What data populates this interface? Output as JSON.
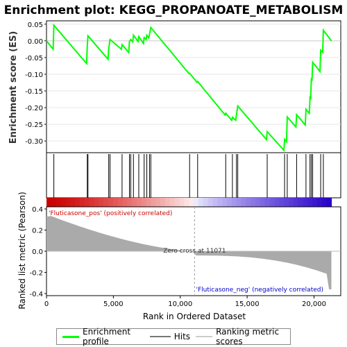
{
  "chart_data": {
    "type": "line",
    "title": "Enrichment plot: KEGG_PROPANOATE_METABOLISM",
    "es_ylabel": "Enrichment score (ES)",
    "metric_ylabel": "Ranked list metric (Pearson)",
    "xlabel": "Rank in Ordered Dataset",
    "xlim": [
      0,
      22000
    ],
    "x_ticks": [
      "0",
      "5,000",
      "10,000",
      "15,000",
      "20,000"
    ],
    "x_tick_values": [
      0,
      5000,
      10000,
      15000,
      20000
    ],
    "es_ylim": [
      -0.335,
      0.06
    ],
    "es_ticks": [
      "0.05",
      "0.00",
      "-0.05",
      "-0.10",
      "-0.15",
      "-0.20",
      "-0.25",
      "-0.30"
    ],
    "es_tick_values": [
      0.05,
      0.0,
      -0.05,
      -0.1,
      -0.15,
      -0.2,
      -0.25,
      -0.3
    ],
    "metric_ylim": [
      -0.42,
      0.42
    ],
    "metric_ticks": [
      "0.4",
      "0.2",
      "0.0",
      "-0.2",
      "-0.4"
    ],
    "metric_tick_values": [
      0.4,
      0.2,
      0.0,
      -0.2,
      -0.4
    ],
    "n_genes": 21300,
    "zero_cross_label": "Zero cross at 11071",
    "zero_cross": 11071,
    "pos_label": "'Fluticasone_pos' (positively correlated)",
    "neg_label": "'Fluticasone_neg' (negatively correlated)",
    "hits": [
      550,
      3050,
      3100,
      4650,
      4750,
      5650,
      6200,
      6300,
      6500,
      6900,
      7300,
      7500,
      7700,
      7800,
      10700,
      11300,
      13400,
      13900,
      14200,
      14300,
      16500,
      17800,
      18000,
      18700,
      19400,
      19700,
      19800,
      19900,
      20500,
      20700
    ],
    "es_series": {
      "name": "Enrichment profile",
      "x": [
        0,
        500,
        550,
        3000,
        3050,
        3100,
        4600,
        4650,
        4750,
        5600,
        5650,
        6150,
        6200,
        6300,
        6450,
        6500,
        6850,
        6900,
        7250,
        7300,
        7450,
        7500,
        7650,
        7700,
        7800,
        10650,
        10700,
        11250,
        11300,
        13350,
        13400,
        13850,
        13900,
        14150,
        14200,
        14300,
        16450,
        16500,
        17750,
        17800,
        17950,
        18000,
        18650,
        18700,
        19350,
        19400,
        19650,
        19700,
        19750,
        19800,
        19850,
        19900,
        20450,
        20500,
        20650,
        20700,
        21300
      ],
      "y": [
        0.0,
        -0.025,
        0.047,
        -0.068,
        -0.015,
        0.015,
        -0.055,
        -0.025,
        0.004,
        -0.025,
        -0.011,
        -0.035,
        -0.002,
        0.004,
        -0.003,
        0.017,
        -0.002,
        0.013,
        -0.008,
        0.01,
        0.004,
        0.017,
        0.009,
        0.02,
        0.04,
        -0.098,
        -0.097,
        -0.124,
        -0.122,
        -0.222,
        -0.217,
        -0.238,
        -0.229,
        -0.238,
        -0.222,
        -0.195,
        -0.296,
        -0.272,
        -0.328,
        -0.295,
        -0.302,
        -0.228,
        -0.258,
        -0.221,
        -0.252,
        -0.205,
        -0.217,
        -0.17,
        -0.172,
        -0.115,
        -0.117,
        -0.064,
        -0.092,
        -0.028,
        -0.034,
        0.032,
        0.0
      ]
    },
    "legend": [
      "Enrichment profile",
      "Hits",
      "Ranking metric scores"
    ],
    "colors": {
      "es_line": "#00ff00",
      "hit": "#000000",
      "metric": "#aaaaaa",
      "pos_text": "#cc0000",
      "neg_text": "#0000cc"
    }
  }
}
